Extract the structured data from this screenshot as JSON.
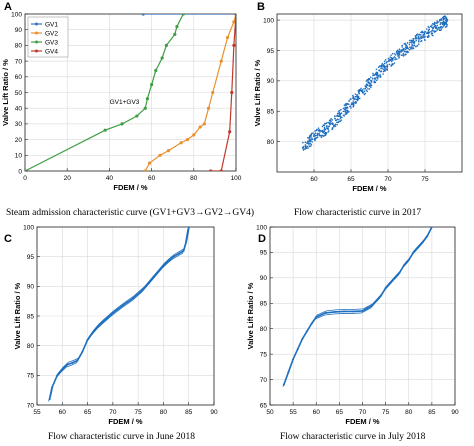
{
  "chart_data": [
    {
      "panel": "A",
      "type": "line",
      "caption": "Steam admission characteristic curve (GV1+GV3→GV2→GV4)",
      "xlabel": "FDEM / %",
      "ylabel": "Valve Lift Ratio / %",
      "xlim": [
        0,
        100
      ],
      "ylim": [
        0,
        100
      ],
      "xticks": [
        0,
        20,
        40,
        60,
        80,
        100
      ],
      "yticks": [
        0,
        10,
        20,
        30,
        40,
        50,
        60,
        70,
        80,
        90,
        100
      ],
      "grid": true,
      "legend_position": "top-left",
      "annotation": {
        "text": "GV1+GV3",
        "x": 50,
        "y": 40
      },
      "series": [
        {
          "name": "GV1",
          "color": "#3a73c4",
          "x": [
            56,
            100
          ],
          "y": [
            100,
            100
          ]
        },
        {
          "name": "GV2",
          "color": "#e8912e",
          "x": [
            57,
            59,
            64,
            68,
            74,
            77,
            80,
            83,
            85,
            87,
            89,
            93,
            96,
            99,
            100
          ],
          "y": [
            0,
            5,
            10,
            13,
            18,
            20,
            23,
            28,
            30,
            40,
            50,
            70,
            85,
            95,
            100
          ]
        },
        {
          "name": "GV3",
          "color": "#3f9e45",
          "x": [
            0,
            38,
            46,
            53,
            57,
            58,
            60,
            62,
            65,
            67,
            71,
            72,
            75
          ],
          "y": [
            0,
            26,
            30,
            35,
            40,
            46,
            55,
            64,
            72,
            80,
            87,
            92,
            100
          ]
        },
        {
          "name": "GV4",
          "color": "#c0392b",
          "x": [
            88,
            93,
            97,
            98,
            99,
            100
          ],
          "y": [
            0,
            0,
            25,
            50,
            80,
            100
          ]
        }
      ]
    },
    {
      "panel": "B",
      "type": "scatter",
      "caption": "Flow characteristic curve in 2017",
      "xlabel": "FDEM / %",
      "ylabel": "Valve Lift Ratio / %",
      "xlim": [
        55,
        80
      ],
      "ylim": [
        75,
        101
      ],
      "xticks": [
        60,
        65,
        70,
        75
      ],
      "yticks": [
        80,
        85,
        90,
        95,
        100
      ],
      "grid": true,
      "color": "#1f6fbf",
      "x": [
        58.5,
        59.5,
        60.5,
        61.5,
        62.5,
        63.5,
        64.5,
        65.5,
        66.5,
        67.5,
        68.5,
        69.5,
        70.5,
        71.5,
        72.5,
        73.5,
        74.5,
        75.5,
        76.5,
        77.5,
        78.0
      ],
      "y": [
        79.0,
        80.2,
        81.3,
        82.0,
        83.0,
        84.2,
        85.6,
        87.0,
        88.3,
        89.6,
        91.0,
        92.3,
        93.5,
        94.5,
        95.4,
        96.3,
        97.2,
        98.0,
        98.8,
        99.6,
        100.0
      ],
      "spread": 1.0
    },
    {
      "panel": "C",
      "type": "line",
      "caption": "Flow characteristic curve in June 2018",
      "xlabel": "FDEM / %",
      "ylabel": "Valve Lift Ratio / %",
      "xlim": [
        55,
        90
      ],
      "ylim": [
        70,
        100
      ],
      "xticks": [
        55,
        60,
        65,
        70,
        75,
        80,
        85,
        90
      ],
      "yticks": [
        70,
        75,
        80,
        85,
        90,
        95,
        100
      ],
      "grid": true,
      "color": "#1f6fbf",
      "x": [
        57.5,
        58,
        59,
        60,
        61,
        62,
        63,
        64,
        65,
        66,
        67,
        68,
        70,
        72,
        74,
        76,
        77,
        78,
        79,
        80,
        81,
        82,
        83,
        84,
        84.5,
        85
      ],
      "y": [
        71,
        73,
        75,
        76,
        76.8,
        77.1,
        77.5,
        79,
        81,
        82.2,
        83.2,
        84,
        85.5,
        86.8,
        88,
        89.5,
        90.5,
        91.5,
        92.5,
        93.5,
        94.3,
        95,
        95.5,
        96,
        97.5,
        100
      ]
    },
    {
      "panel": "D",
      "type": "line",
      "caption": "Flow characteristic curve in July 2018",
      "xlabel": "FDEM / %",
      "ylabel": "Valve Lift Ratio / %",
      "xlim": [
        50,
        90
      ],
      "ylim": [
        65,
        100
      ],
      "xticks": [
        50,
        55,
        60,
        65,
        70,
        75,
        80,
        85,
        90
      ],
      "yticks": [
        65,
        70,
        75,
        80,
        85,
        90,
        95,
        100
      ],
      "grid": true,
      "color": "#1f6fbf",
      "x": [
        53,
        54,
        55,
        56,
        57,
        58,
        59,
        60,
        62,
        64,
        66,
        68,
        70,
        71,
        72,
        73,
        74,
        75,
        76,
        77,
        78,
        79,
        80,
        81,
        82,
        83,
        84,
        85
      ],
      "y": [
        69,
        71.5,
        74,
        76,
        78,
        79.5,
        81,
        82.3,
        83.1,
        83.3,
        83.4,
        83.4,
        83.5,
        84,
        84.5,
        85.5,
        86.5,
        88,
        89,
        90,
        91,
        92.5,
        93.5,
        95,
        96,
        97,
        98.2,
        100
      ]
    }
  ]
}
